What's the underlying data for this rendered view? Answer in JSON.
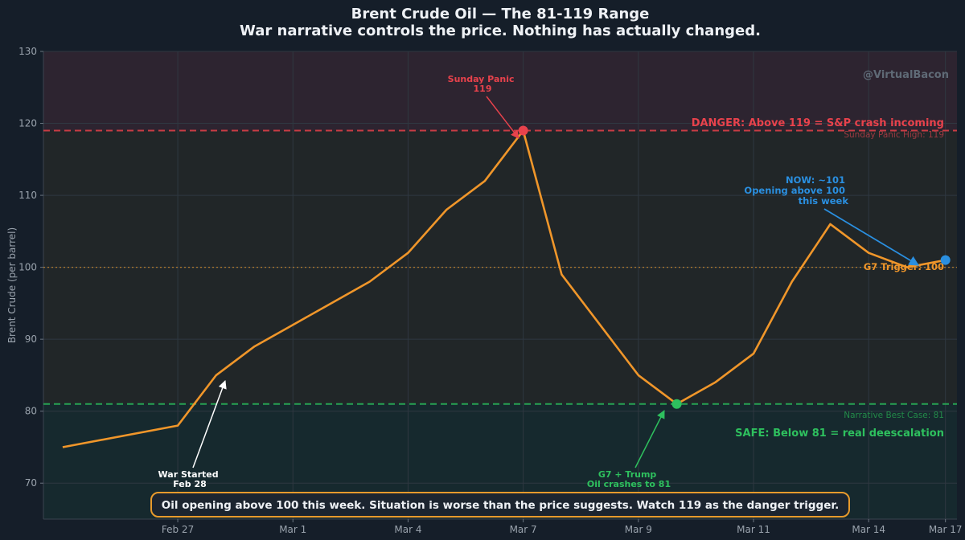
{
  "chart_data": {
    "type": "line",
    "title": "Brent Crude Oil — The 81-119 Range",
    "subtitle": "War narrative controls the price. Nothing has actually changed.",
    "xlabel": "",
    "ylabel": "Brent Crude (per barrel)",
    "ylim": [
      65,
      130
    ],
    "xlim": [
      -0.5,
      23.3
    ],
    "yticks": [
      70,
      80,
      90,
      100,
      110,
      120,
      130
    ],
    "xticks": [
      {
        "x": 3,
        "label": "Feb 27"
      },
      {
        "x": 6,
        "label": "Mar 1"
      },
      {
        "x": 9,
        "label": "Mar 4"
      },
      {
        "x": 12,
        "label": "Mar 7"
      },
      {
        "x": 15,
        "label": "Mar 9"
      },
      {
        "x": 18,
        "label": "Mar 11"
      },
      {
        "x": 21,
        "label": "Mar 14"
      },
      {
        "x": 23,
        "label": "Mar 17"
      }
    ],
    "series": [
      {
        "name": "Brent Crude",
        "color": "#f0962a",
        "x": [
          0,
          3,
          4,
          5,
          6,
          7,
          8,
          9,
          10,
          11,
          12,
          13,
          14,
          15,
          16,
          17,
          18,
          19,
          20,
          21,
          22,
          23
        ],
        "y": [
          75,
          78,
          85,
          89,
          92,
          95,
          98,
          102,
          108,
          112,
          119,
          99,
          92,
          85,
          81,
          84,
          88,
          98,
          106,
          102,
          100,
          101
        ]
      }
    ],
    "zones": {
      "danger": {
        "from": 119,
        "to": 130,
        "color": "#2d2430"
      },
      "safe": {
        "from": 65,
        "to": 81,
        "color": "#16292e"
      }
    },
    "reference_lines": [
      {
        "y": 119,
        "style": "dashed",
        "color": "#c83c44",
        "label": "Sunday Panic High: 119"
      },
      {
        "y": 81,
        "style": "dashed",
        "color": "#27a353",
        "label": "Narrative Best Case: 81"
      },
      {
        "y": 100,
        "style": "dotted",
        "color": "#b27a2e",
        "label": "G7 Trigger: 100"
      }
    ],
    "zone_labels": {
      "danger": "DANGER: Above 119 = S&P crash incoming",
      "safe": "SAFE: Below 81 = real deescalation"
    },
    "watermark": "@VirtualBacon",
    "points": [
      {
        "x": 12,
        "y": 119,
        "color": "#e8424c"
      },
      {
        "x": 16,
        "y": 81,
        "color": "#2ec05e"
      },
      {
        "x": 23,
        "y": 101,
        "color": "#2a8fe0"
      }
    ],
    "annotations": [
      {
        "lines": [
          "Sunday Panic",
          "119"
        ],
        "color": "#e8424c",
        "target": [
          12,
          119
        ]
      },
      {
        "lines": [
          "War Started",
          "Feb 28"
        ],
        "color": "#ffffff",
        "target": [
          4,
          85
        ]
      },
      {
        "lines": [
          "G7 + Trump",
          "Oil crashes to 81"
        ],
        "color": "#2ec05e",
        "target": [
          16,
          81
        ]
      },
      {
        "lines": [
          "NOW: ~101",
          "Opening above 100",
          "this week"
        ],
        "color": "#2a8fe0",
        "target": [
          23,
          101
        ]
      }
    ],
    "footer_note": "Oil opening above 100 this week. Situation is worse than the price suggests. Watch 119 as the danger trigger."
  }
}
